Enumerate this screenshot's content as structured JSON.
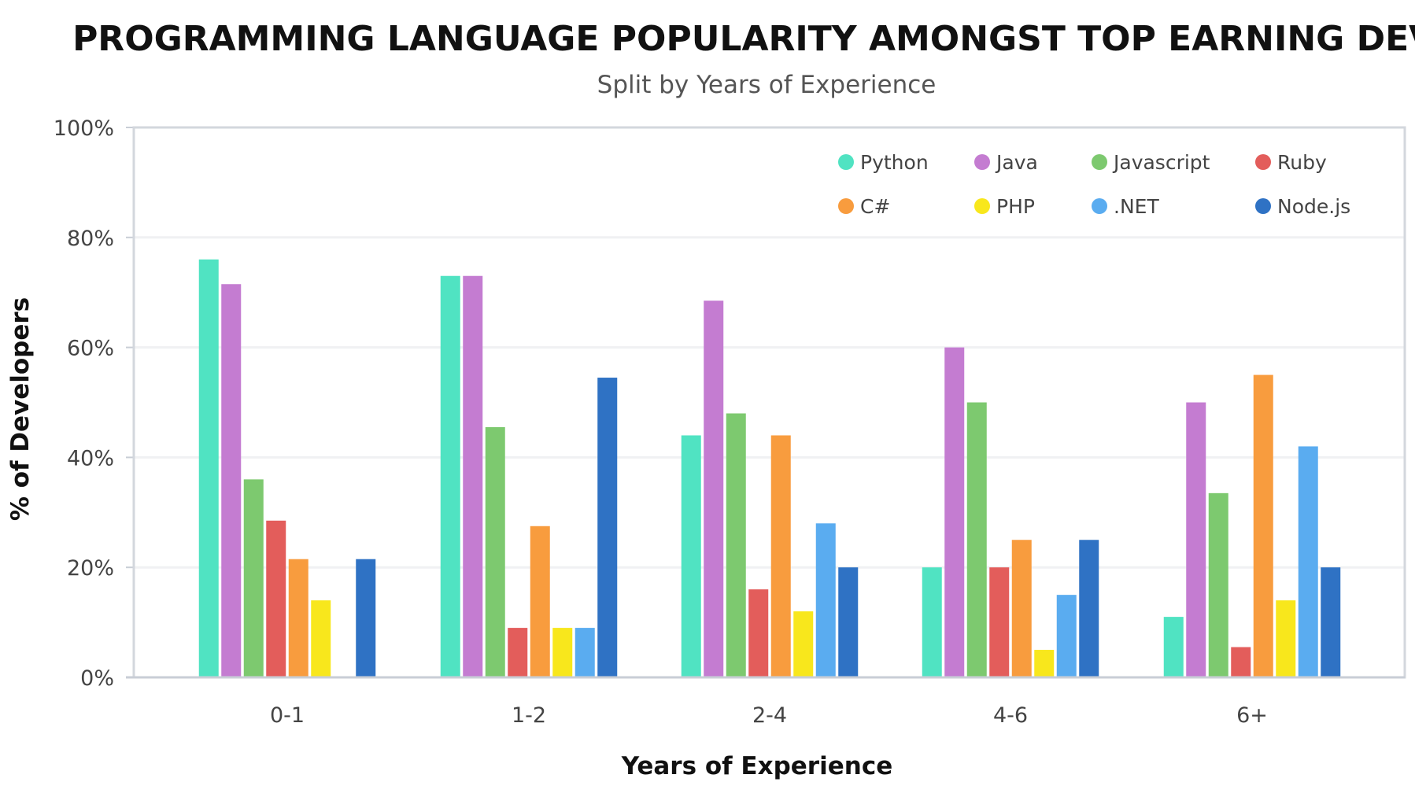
{
  "chart_data": {
    "type": "bar",
    "title": "PROGRAMMING LANGUAGE POPULARITY AMONGST TOP EARNING DEVS",
    "subtitle": "Split by Years of Experience",
    "xlabel": "Years of Experience",
    "ylabel": "% of Developers",
    "ylim": [
      0,
      100
    ],
    "yticks": [
      "0%",
      "20%",
      "40%",
      "60%",
      "80%",
      "100%"
    ],
    "categories": [
      "0-1",
      "1-2",
      "2-4",
      "4-6",
      "6+"
    ],
    "legend_position": "top-right",
    "grid": true,
    "series": [
      {
        "name": "Python",
        "color": "#50e3c2",
        "values": [
          76,
          73,
          44,
          20,
          11
        ]
      },
      {
        "name": "Java",
        "color": "#c47cd1",
        "values": [
          71.5,
          73,
          68.5,
          60,
          50
        ]
      },
      {
        "name": "Javascript",
        "color": "#7dc96f",
        "values": [
          36,
          45.5,
          48,
          50,
          33.5
        ]
      },
      {
        "name": "Ruby",
        "color": "#e35d5b",
        "values": [
          28.5,
          9,
          16,
          20,
          5.5
        ]
      },
      {
        "name": "C#",
        "color": "#f89c3e",
        "values": [
          21.5,
          27.5,
          44,
          25,
          55
        ]
      },
      {
        "name": "PHP",
        "color": "#f8e71c",
        "values": [
          14,
          9,
          12,
          5,
          14
        ]
      },
      {
        "name": ".NET",
        "color": "#5aacf0",
        "values": [
          0,
          9,
          28,
          15,
          42
        ]
      },
      {
        "name": "Node.js",
        "color": "#2f72c4",
        "values": [
          21.5,
          54.5,
          20,
          25,
          20
        ]
      }
    ]
  }
}
